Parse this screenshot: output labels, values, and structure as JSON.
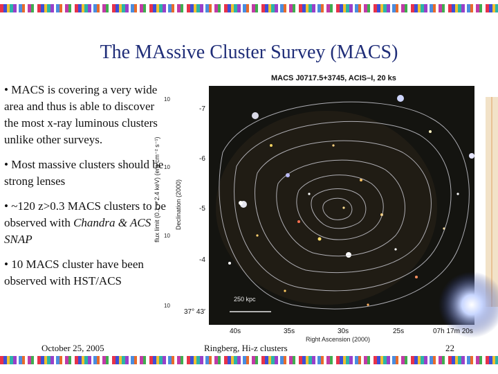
{
  "title": "The MAssive Cluster Survey (MACS)",
  "bullets": [
    {
      "text": "• MACS is covering a very wide area and thus is able to discover the most x-ray luminous clusters unlike other surveys."
    },
    {
      "text": "• Most massive clusters should be strong lenses"
    },
    {
      "text": "• ~120 z>0.3 MACS clusters to be observed with ",
      "italic": "Chandra & ACS SNAP"
    },
    {
      "text": "• 10 MACS cluster have been observed with HST/ACS"
    }
  ],
  "footer": {
    "date": "October 25, 2005",
    "center": "Ringberg, Hi-z clusters",
    "page": "22"
  },
  "figure": {
    "image_title": "MACS J0717.5+3745, ACIS–I, 20 ks",
    "dec_label": "Declination (2000)",
    "ra_label": "Right Ascension (2000)",
    "dec_ticks": [
      "-7",
      "-6",
      "-5",
      "-4",
      "37° 43′"
    ],
    "ra_ticks": [
      "40s",
      "35s",
      "30s",
      "25s",
      "07h 17m 20s"
    ],
    "scale_bar": "250 kpc",
    "left_axis_label": "flux limit (0.1 – 2.4 keV) (erg cm⁻² s⁻¹)",
    "left_axis_ticks": [
      "10",
      "10",
      "10",
      "10"
    ]
  }
}
